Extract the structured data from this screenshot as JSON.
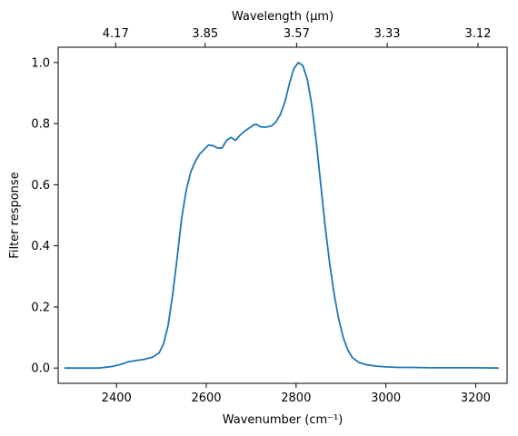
{
  "chart_data": {
    "type": "line",
    "title": "",
    "xlabel": "Wavenumber (cm⁻¹)",
    "ylabel": "Filter response",
    "top_xlabel": "Wavelength (μm)",
    "xlim": [
      2270,
      3270
    ],
    "ylim": [
      -0.05,
      1.05
    ],
    "grid": false,
    "x_ticks": [
      2400,
      2600,
      2800,
      3000,
      3200
    ],
    "y_ticks": [
      0.0,
      0.2,
      0.4,
      0.6,
      0.8,
      1.0
    ],
    "x_tick_labels": [
      "2400",
      "2600",
      "2800",
      "3000",
      "3200"
    ],
    "y_tick_labels": [
      "0.0",
      "0.2",
      "0.4",
      "0.6",
      "0.8",
      "1.0"
    ],
    "top_ticks": [
      {
        "label": "4.17",
        "wavelength_um": 4.17
      },
      {
        "label": "3.85",
        "wavelength_um": 3.85
      },
      {
        "label": "3.57",
        "wavelength_um": 3.57
      },
      {
        "label": "3.33",
        "wavelength_um": 3.33
      },
      {
        "label": "3.12",
        "wavelength_um": 3.12
      }
    ],
    "line_color": "#1f77b4",
    "series": [
      {
        "x": [
          2285,
          2320,
          2360,
          2390,
          2410,
          2425,
          2440,
          2460,
          2480,
          2495,
          2505,
          2515,
          2525,
          2535,
          2545,
          2555,
          2565,
          2575,
          2585,
          2595,
          2605,
          2615,
          2625,
          2635,
          2645,
          2655,
          2665,
          2675,
          2685,
          2695,
          2705,
          2710,
          2715,
          2720,
          2730,
          2745,
          2755,
          2765,
          2775,
          2785,
          2795,
          2805,
          2815,
          2825,
          2835,
          2845,
          2855,
          2865,
          2875,
          2885,
          2895,
          2905,
          2915,
          2925,
          2940,
          2960,
          2980,
          3000,
          3030,
          3060,
          3100,
          3150,
          3200,
          3250
        ],
        "y": [
          0.0,
          0.0,
          0.0,
          0.005,
          0.012,
          0.02,
          0.024,
          0.028,
          0.035,
          0.05,
          0.08,
          0.14,
          0.24,
          0.36,
          0.49,
          0.58,
          0.64,
          0.675,
          0.7,
          0.715,
          0.73,
          0.728,
          0.72,
          0.72,
          0.745,
          0.755,
          0.745,
          0.762,
          0.775,
          0.785,
          0.795,
          0.798,
          0.795,
          0.79,
          0.788,
          0.792,
          0.805,
          0.83,
          0.87,
          0.93,
          0.98,
          1.0,
          0.99,
          0.945,
          0.86,
          0.74,
          0.6,
          0.46,
          0.34,
          0.24,
          0.16,
          0.1,
          0.06,
          0.035,
          0.018,
          0.01,
          0.006,
          0.004,
          0.002,
          0.002,
          0.001,
          0.001,
          0.001,
          0.0
        ]
      }
    ]
  }
}
